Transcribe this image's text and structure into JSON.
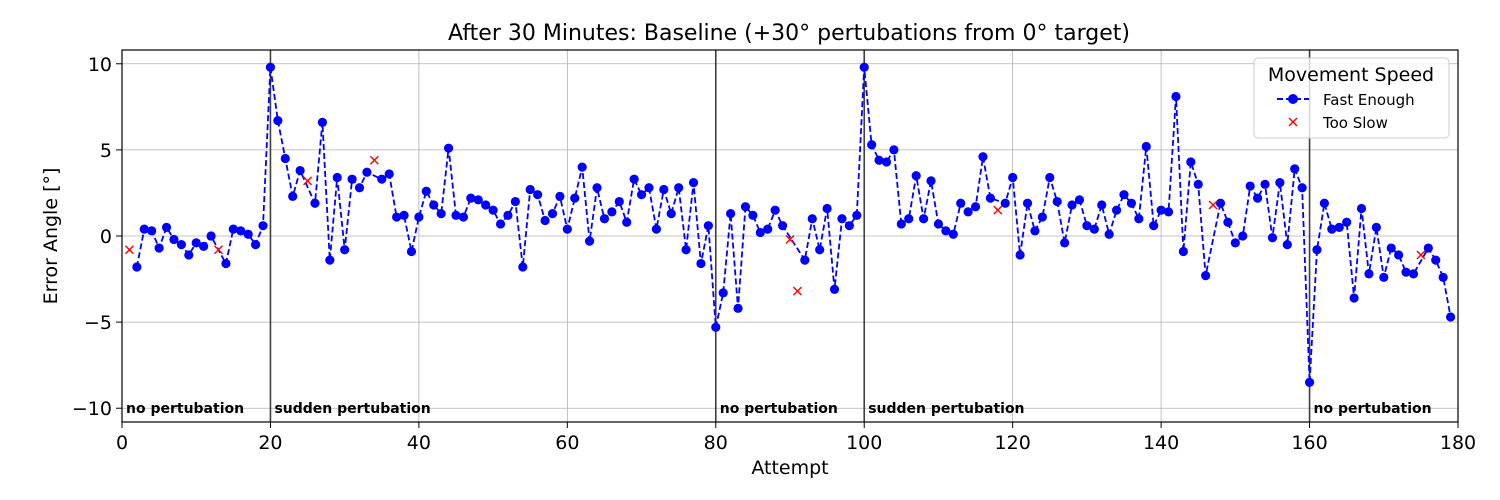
{
  "chart_data": {
    "type": "line",
    "title": "After 30 Minutes: Baseline (+30° pertubations from 0° target)",
    "xlabel": "Attempt",
    "ylabel": "Error Angle [°]",
    "xlim": [
      0,
      180
    ],
    "ylim": [
      -10.8,
      10.8
    ],
    "xticks": [
      0,
      20,
      40,
      60,
      80,
      100,
      120,
      140,
      160,
      180
    ],
    "yticks": [
      -10,
      -5,
      0,
      5,
      10
    ],
    "grid": true,
    "legend": {
      "title": "Movement Speed",
      "position": "top-right",
      "entries": [
        "Fast Enough",
        "Too Slow"
      ]
    },
    "colors": {
      "fast": "#0000ff",
      "slow": "#ff0000",
      "phase_line": "#3f3f3f",
      "grid": "#b0b0b0"
    },
    "phase_boundaries": [
      20,
      80,
      100,
      160
    ],
    "phase_labels": [
      {
        "x": 0,
        "text": "no pertubation"
      },
      {
        "x": 20,
        "text": "sudden pertubation"
      },
      {
        "x": 80,
        "text": "no pertubation"
      },
      {
        "x": 100,
        "text": "sudden pertubation"
      },
      {
        "x": 160,
        "text": "no pertubation"
      }
    ],
    "series": [
      {
        "name": "Fast Enough",
        "marker": "circle",
        "line": "dashed",
        "x": [
          2,
          3,
          4,
          5,
          6,
          7,
          8,
          9,
          10,
          11,
          12,
          14,
          15,
          16,
          17,
          18,
          19,
          20,
          21,
          22,
          23,
          24,
          26,
          27,
          28,
          29,
          30,
          31,
          32,
          33,
          35,
          36,
          37,
          38,
          39,
          40,
          41,
          42,
          43,
          44,
          45,
          46,
          47,
          48,
          49,
          50,
          51,
          52,
          53,
          54,
          55,
          56,
          57,
          58,
          59,
          60,
          61,
          62,
          63,
          64,
          65,
          66,
          67,
          68,
          69,
          70,
          71,
          72,
          73,
          74,
          75,
          76,
          77,
          78,
          79,
          80,
          81,
          82,
          83,
          84,
          85,
          86,
          87,
          88,
          89,
          92,
          93,
          94,
          95,
          96,
          97,
          98,
          99,
          100,
          101,
          102,
          103,
          104,
          105,
          106,
          107,
          108,
          109,
          110,
          111,
          112,
          113,
          114,
          115,
          116,
          117,
          119,
          120,
          121,
          122,
          123,
          124,
          125,
          126,
          127,
          128,
          129,
          130,
          131,
          132,
          133,
          134,
          135,
          136,
          137,
          138,
          139,
          140,
          141,
          142,
          143,
          144,
          145,
          146,
          148,
          149,
          150,
          151,
          152,
          153,
          154,
          155,
          156,
          157,
          158,
          159,
          160,
          161,
          162,
          163,
          164,
          165,
          166,
          167,
          168,
          169,
          170,
          171,
          172,
          173,
          174,
          176,
          177,
          178,
          179
        ],
        "y": [
          -1.8,
          0.4,
          0.3,
          -0.7,
          0.5,
          -0.2,
          -0.5,
          -1.1,
          -0.4,
          -0.6,
          0.0,
          -1.6,
          0.4,
          0.3,
          0.1,
          -0.5,
          0.6,
          9.8,
          6.7,
          4.5,
          2.3,
          3.8,
          1.9,
          6.6,
          -1.4,
          3.4,
          -0.8,
          3.3,
          2.8,
          3.7,
          3.3,
          3.6,
          1.1,
          1.2,
          -0.9,
          1.1,
          2.6,
          1.8,
          1.3,
          5.1,
          1.2,
          1.1,
          2.2,
          2.1,
          1.8,
          1.5,
          0.7,
          1.2,
          2.0,
          -1.8,
          2.7,
          2.4,
          0.9,
          1.3,
          2.3,
          0.4,
          2.2,
          4.0,
          -0.3,
          2.8,
          1.0,
          1.4,
          2.0,
          0.8,
          3.3,
          2.4,
          2.8,
          0.4,
          2.7,
          1.3,
          2.8,
          -0.8,
          3.1,
          -1.6,
          0.6,
          -5.3,
          -3.3,
          1.3,
          -4.2,
          1.7,
          1.2,
          0.2,
          0.4,
          1.5,
          0.6,
          -1.4,
          1.0,
          -0.8,
          1.6,
          -3.1,
          1.0,
          0.6,
          1.2,
          9.8,
          5.3,
          4.4,
          4.3,
          5.0,
          0.7,
          1.0,
          3.5,
          1.0,
          3.2,
          0.7,
          0.3,
          0.1,
          1.9,
          1.4,
          1.7,
          4.6,
          2.2,
          1.9,
          3.4,
          -1.1,
          1.9,
          0.3,
          1.1,
          3.4,
          2.0,
          -0.4,
          1.8,
          2.1,
          0.6,
          0.4,
          1.8,
          0.1,
          1.5,
          2.4,
          1.9,
          1.0,
          5.2,
          0.6,
          1.5,
          1.4,
          8.1,
          -0.9,
          4.3,
          3.0,
          -2.3,
          1.9,
          0.8,
          -0.4,
          0.0,
          2.9,
          2.2,
          3.0,
          -0.1,
          3.1,
          -0.5,
          3.9,
          2.8,
          -8.5,
          -0.8,
          1.9,
          0.4,
          0.5,
          0.8,
          -3.6,
          1.6,
          -2.2,
          0.5,
          -2.4,
          -0.7,
          -1.1,
          -2.1,
          -2.2,
          -0.7,
          -1.4,
          -2.4,
          -4.7
        ]
      },
      {
        "name": "Too Slow",
        "marker": "x",
        "line": "none",
        "x": [
          1,
          13,
          25,
          34,
          90,
          91,
          118,
          147,
          175
        ],
        "y": [
          -0.8,
          -0.8,
          3.2,
          4.4,
          -0.2,
          -3.2,
          1.5,
          1.8,
          -1.1
        ]
      }
    ]
  }
}
